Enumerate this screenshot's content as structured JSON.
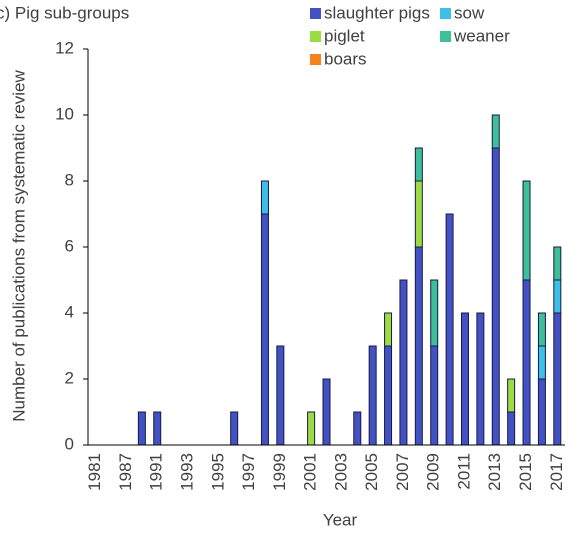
{
  "chart_data": {
    "type": "bar",
    "stacked": true,
    "title": "c) Pig sub-groups",
    "xlabel": "Year",
    "ylabel": "Number of publications from systematic review",
    "categories": [
      "1981",
      null,
      "1987",
      null,
      "1991",
      null,
      "1993",
      null,
      "1995",
      null,
      "1997",
      null,
      "1999",
      null,
      "2001",
      null,
      "2003",
      null,
      "2005",
      null,
      "2007",
      null,
      "2009",
      null,
      "2011",
      null,
      "2013",
      null,
      "2015",
      null,
      "2017"
    ],
    "series": [
      {
        "name": "slaughter pigs",
        "color": "#4352c2",
        "values": [
          0,
          0,
          0,
          1,
          1,
          0,
          0,
          0,
          0,
          1,
          0,
          7,
          3,
          0,
          0,
          2,
          0,
          1,
          3,
          3,
          5,
          6,
          3,
          7,
          4,
          4,
          9,
          1,
          5,
          2,
          4
        ]
      },
      {
        "name": "sow",
        "color": "#3cc0e8",
        "values": [
          0,
          0,
          0,
          0,
          0,
          0,
          0,
          0,
          0,
          0,
          0,
          1,
          0,
          0,
          0,
          0,
          0,
          0,
          0,
          0,
          0,
          0,
          0,
          0,
          0,
          0,
          0,
          0,
          0,
          1,
          1
        ]
      },
      {
        "name": "piglet",
        "color": "#9bdc45",
        "values": [
          0,
          0,
          0,
          0,
          0,
          0,
          0,
          0,
          0,
          0,
          0,
          0,
          0,
          0,
          1,
          0,
          0,
          0,
          0,
          1,
          0,
          2,
          0,
          0,
          0,
          0,
          0,
          1,
          0,
          0,
          0
        ]
      },
      {
        "name": "weaner",
        "color": "#3cbf9a",
        "values": [
          0,
          0,
          0,
          0,
          0,
          0,
          0,
          0,
          0,
          0,
          0,
          0,
          0,
          0,
          0,
          0,
          0,
          0,
          0,
          0,
          0,
          1,
          2,
          0,
          0,
          0,
          1,
          0,
          3,
          1,
          1
        ]
      },
      {
        "name": "boars",
        "color": "#f5821f",
        "values": [
          0,
          0,
          0,
          0,
          0,
          0,
          0,
          0,
          0,
          0,
          0,
          0,
          0,
          0,
          0,
          0,
          0,
          0,
          0,
          0,
          0,
          0,
          0,
          0,
          0,
          0,
          0,
          0,
          0,
          0,
          0
        ]
      }
    ],
    "ylim": [
      0,
      12
    ],
    "yticks": [
      0,
      2,
      4,
      6,
      8,
      10,
      12
    ]
  }
}
